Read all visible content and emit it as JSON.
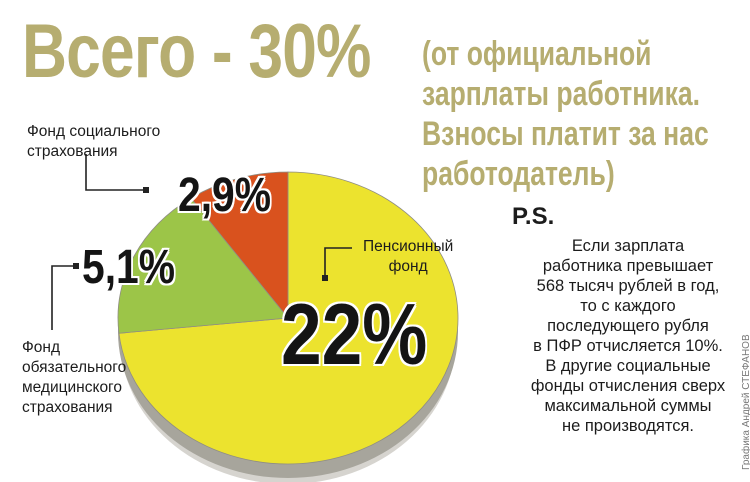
{
  "headline": {
    "main": "Всего - 30%",
    "note_lines": [
      "(от официальной",
      "зарплаты работника.",
      "Взносы платит за нас",
      "работодатель)"
    ]
  },
  "chart_data": {
    "type": "pie",
    "slices": [
      {
        "name_lines": [
          "Пенсионный",
          "фонд"
        ],
        "value": 22,
        "label": "22%",
        "color": "#ece32e"
      },
      {
        "name_lines": [
          "Фонд социального",
          "страхования"
        ],
        "value": 2.9,
        "label": "2,9%",
        "color": "#d9521e"
      },
      {
        "name_lines": [
          "Фонд",
          "обязательного",
          "медицинского",
          "страхования"
        ],
        "value": 5.1,
        "label": "5,1%",
        "color": "#9cc548"
      }
    ],
    "total_label": "30%",
    "colors": {
      "edge": "#a7a59c",
      "shadow": "#d6d4cf"
    }
  },
  "ps": {
    "title": "P.S.",
    "lines": [
      "Если зарплата",
      "работника превышает",
      "568 тысяч рублей в год,",
      "то с каждого",
      "последующего рубля",
      "в ПФР отчисляется 10%.",
      "В другие социальные",
      "фонды отчисления сверх",
      "максимальной суммы",
      "не производятся."
    ]
  },
  "credit": "Графика Андрей СТЕФАНОВ"
}
